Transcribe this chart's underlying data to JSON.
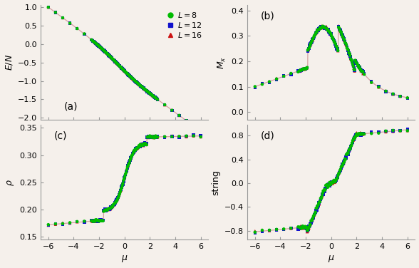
{
  "fig_width": 5.88,
  "fig_height": 3.76,
  "dpi": 100,
  "bg_color": "#f5f0eb",
  "line_color": "#d4a0a0",
  "colors": {
    "L8": "#00bb00",
    "L12": "#1111cc",
    "L16": "#cc1111"
  },
  "xlim": [
    -6.6,
    6.6
  ],
  "mu_ticks": [
    -6,
    -4,
    -2,
    0,
    2,
    4,
    6
  ],
  "panel_labels": [
    "(a)",
    "(b)",
    "(c)",
    "(d)"
  ],
  "ylims": {
    "a": [
      -2.05,
      1.05
    ],
    "b": [
      -0.03,
      0.42
    ],
    "c": [
      0.145,
      0.355
    ],
    "d": [
      -0.95,
      0.98
    ]
  },
  "yticks": {
    "a": [
      -2.0,
      -1.5,
      -1.0,
      -0.5,
      0.0,
      0.5,
      1.0
    ],
    "b": [
      0.0,
      0.1,
      0.2,
      0.3,
      0.4
    ],
    "c": [
      0.15,
      0.2,
      0.25,
      0.3,
      0.35
    ],
    "d": [
      -0.8,
      -0.4,
      0.0,
      0.4,
      0.8
    ]
  }
}
